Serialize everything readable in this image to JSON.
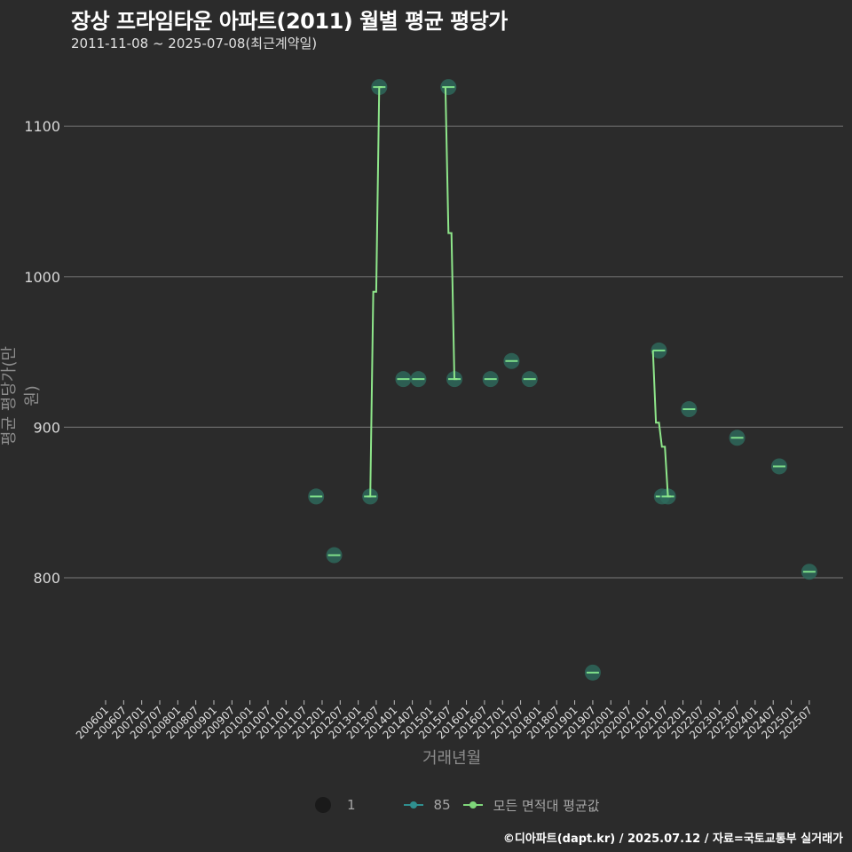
{
  "header": {
    "title": "장상 프라임타운 아파트(2011) 월별 평균 평당가",
    "subtitle": "2011-11-08 ~ 2025-07-08(최근계약일)"
  },
  "footer": {
    "credit": "©디아파트(dapt.kr) / 2025.07.12 / 자료=국토교통부 실거래가"
  },
  "legend": {
    "size_label": "1",
    "series_85_label": "85",
    "avg_label": "모든 면적대 평균값"
  },
  "colors": {
    "background": "#2b2b2b",
    "grid": "#6b6b6b",
    "point_fill": "#2e6b5e",
    "point_line": "#7fe08a",
    "avg_line": "#8ee68a",
    "legend_85": "#3aa0a0"
  },
  "chart_data": {
    "type": "scatter",
    "title": "장상 프라임타운 아파트(2011) 월별 평균 평당가",
    "subtitle": "2011-11-08 ~ 2025-07-08(최근계약일)",
    "xlabel": "거래년월",
    "ylabel": "평균 평당가(만 원)",
    "ylim": [
      720,
      1140
    ],
    "yticks": [
      800,
      900,
      1000,
      1100
    ],
    "grid": true,
    "legend_position": "bottom",
    "xticks": [
      "200601",
      "200607",
      "200701",
      "200707",
      "200801",
      "200807",
      "200901",
      "200907",
      "201001",
      "201007",
      "201101",
      "201107",
      "201201",
      "201207",
      "201301",
      "201307",
      "201401",
      "201407",
      "201501",
      "201507",
      "201601",
      "201607",
      "201701",
      "201707",
      "201801",
      "201807",
      "201901",
      "201907",
      "202001",
      "202007",
      "202101",
      "202107",
      "202201",
      "202207",
      "202301",
      "202307",
      "202401",
      "202407",
      "202501",
      "202507"
    ],
    "series": [
      {
        "name": "85",
        "points": [
          {
            "x": "2011-11",
            "y": 854
          },
          {
            "x": "2012-05",
            "y": 815
          },
          {
            "x": "2013-05",
            "y": 854
          },
          {
            "x": "2013-08",
            "y": 1126
          },
          {
            "x": "2014-04",
            "y": 932
          },
          {
            "x": "2014-09",
            "y": 932
          },
          {
            "x": "2015-07",
            "y": 1126
          },
          {
            "x": "2015-09",
            "y": 932
          },
          {
            "x": "2016-09",
            "y": 932
          },
          {
            "x": "2017-04",
            "y": 944
          },
          {
            "x": "2017-10",
            "y": 932
          },
          {
            "x": "2019-07",
            "y": 737
          },
          {
            "x": "2021-05",
            "y": 951
          },
          {
            "x": "2021-06",
            "y": 854
          },
          {
            "x": "2021-08",
            "y": 854
          },
          {
            "x": "2022-03",
            "y": 912
          },
          {
            "x": "2023-07",
            "y": 893
          },
          {
            "x": "2024-09",
            "y": 874
          },
          {
            "x": "2025-07",
            "y": 804
          }
        ]
      },
      {
        "name": "모든 면적대 평균값",
        "type": "step",
        "segments": [
          [
            {
              "x": "2013-04",
              "y": 854
            },
            {
              "x": "2013-05",
              "y": 854
            },
            {
              "x": "2013-06",
              "y": 990
            },
            {
              "x": "2013-07",
              "y": 990
            },
            {
              "x": "2013-08",
              "y": 1126
            },
            {
              "x": "2013-09",
              "y": 1126
            }
          ],
          [
            {
              "x": "2015-06",
              "y": 1126
            },
            {
              "x": "2015-07",
              "y": 1029
            },
            {
              "x": "2015-08",
              "y": 1029
            },
            {
              "x": "2015-09",
              "y": 932
            },
            {
              "x": "2015-10",
              "y": 932
            }
          ],
          [
            {
              "x": "2021-03",
              "y": 951
            },
            {
              "x": "2021-04",
              "y": 903
            },
            {
              "x": "2021-05",
              "y": 903
            },
            {
              "x": "2021-06",
              "y": 887
            },
            {
              "x": "2021-07",
              "y": 887
            },
            {
              "x": "2021-08",
              "y": 854
            },
            {
              "x": "2021-09",
              "y": 854
            }
          ]
        ]
      }
    ]
  }
}
